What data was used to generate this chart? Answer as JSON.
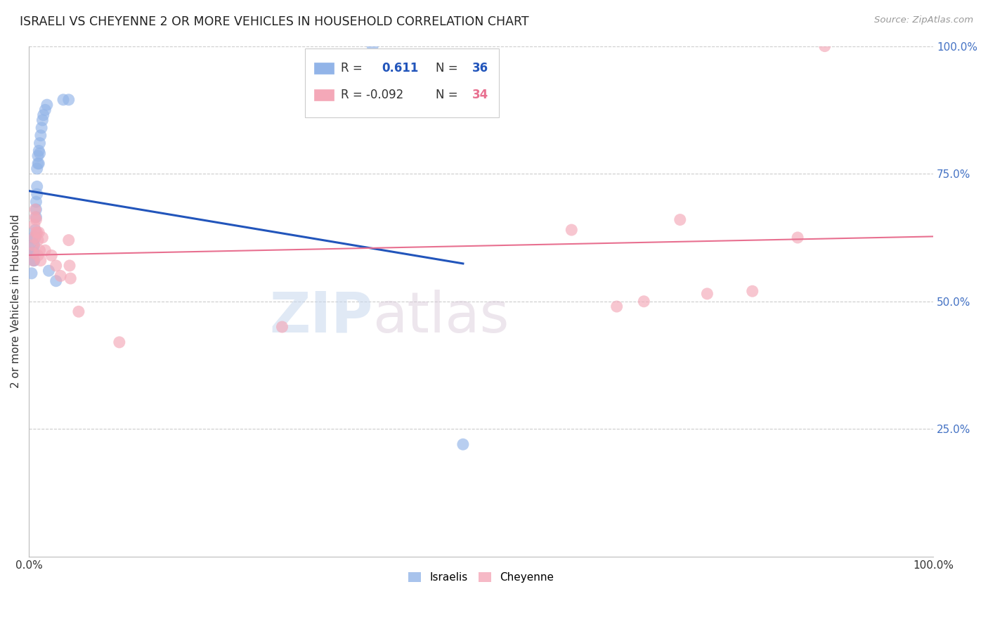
{
  "title": "ISRAELI VS CHEYENNE 2 OR MORE VEHICLES IN HOUSEHOLD CORRELATION CHART",
  "source": "Source: ZipAtlas.com",
  "ylabel": "2 or more Vehicles in Household",
  "xlim": [
    0.0,
    1.0
  ],
  "ylim": [
    0.0,
    1.0
  ],
  "legend_r_blue": "0.611",
  "legend_n_blue": "36",
  "legend_r_pink": "-0.092",
  "legend_n_pink": "34",
  "blue_color": "#92b4e8",
  "pink_color": "#f4a8b8",
  "blue_line_color": "#2255bb",
  "pink_line_color": "#e87090",
  "watermark_zip": "ZIP",
  "watermark_atlas": "atlas",
  "background_color": "#ffffff",
  "grid_color": "#cccccc",
  "israelis_x": [
    0.003,
    0.003,
    0.004,
    0.004,
    0.005,
    0.005,
    0.005,
    0.006,
    0.006,
    0.006,
    0.007,
    0.007,
    0.008,
    0.008,
    0.008,
    0.009,
    0.009,
    0.009,
    0.01,
    0.01,
    0.011,
    0.011,
    0.012,
    0.012,
    0.013,
    0.014,
    0.015,
    0.016,
    0.018,
    0.02,
    0.022,
    0.03,
    0.038,
    0.044,
    0.38,
    0.48
  ],
  "israelis_y": [
    0.555,
    0.595,
    0.595,
    0.625,
    0.58,
    0.595,
    0.61,
    0.58,
    0.595,
    0.61,
    0.625,
    0.64,
    0.665,
    0.68,
    0.695,
    0.71,
    0.725,
    0.76,
    0.77,
    0.785,
    0.77,
    0.795,
    0.79,
    0.81,
    0.825,
    0.84,
    0.855,
    0.865,
    0.875,
    0.885,
    0.56,
    0.54,
    0.895,
    0.895,
    1.0,
    0.22
  ],
  "cheyenne_x": [
    0.004,
    0.005,
    0.005,
    0.006,
    0.006,
    0.007,
    0.007,
    0.008,
    0.008,
    0.009,
    0.01,
    0.01,
    0.011,
    0.012,
    0.013,
    0.015,
    0.018,
    0.025,
    0.03,
    0.035,
    0.044,
    0.045,
    0.046,
    0.055,
    0.1,
    0.28,
    0.6,
    0.65,
    0.68,
    0.72,
    0.75,
    0.8,
    0.85,
    0.88
  ],
  "cheyenne_y": [
    0.595,
    0.58,
    0.61,
    0.625,
    0.65,
    0.665,
    0.68,
    0.635,
    0.66,
    0.635,
    0.59,
    0.62,
    0.635,
    0.6,
    0.58,
    0.625,
    0.6,
    0.59,
    0.57,
    0.55,
    0.62,
    0.57,
    0.545,
    0.48,
    0.42,
    0.45,
    0.64,
    0.49,
    0.5,
    0.66,
    0.515,
    0.52,
    0.625,
    1.0
  ]
}
